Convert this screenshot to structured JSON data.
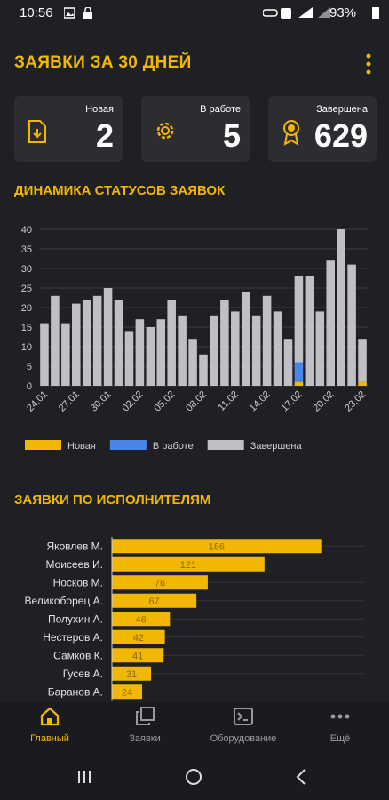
{
  "status_bar": {
    "time": "10:56",
    "battery": "93%"
  },
  "header": {
    "title": "ЗАЯВКИ ЗА 30 ДНЕЙ"
  },
  "cards": [
    {
      "label": "Новая",
      "value": 2
    },
    {
      "label": "В работе",
      "value": 5
    },
    {
      "label": "Завершена",
      "value": 629
    }
  ],
  "chart_data": [
    {
      "type": "bar",
      "stacked": true,
      "title": "ДИНАМИКА СТАТУСОВ ЗАЯВОК",
      "categories": [
        "24.01",
        null,
        null,
        "27.01",
        null,
        null,
        "30.01",
        null,
        null,
        "02.02",
        null,
        null,
        "05.02",
        null,
        null,
        "08.02",
        null,
        null,
        "11.02",
        null,
        null,
        "14.02",
        null,
        null,
        "17.02",
        null,
        null,
        "20.02",
        null,
        null,
        "23.02"
      ],
      "series": [
        {
          "name": "Новая",
          "color": "#f2b705",
          "values": [
            0,
            0,
            0,
            0,
            0,
            0,
            0,
            0,
            0,
            0,
            0,
            0,
            0,
            0,
            0,
            0,
            0,
            0,
            0,
            0,
            0,
            0,
            0,
            0,
            1,
            0,
            0,
            0,
            0,
            0,
            1
          ]
        },
        {
          "name": "В работе",
          "color": "#4a86e8",
          "values": [
            0,
            0,
            0,
            0,
            0,
            0,
            0,
            0,
            0,
            0,
            0,
            0,
            0,
            0,
            0,
            0,
            0,
            0,
            0,
            0,
            0,
            0,
            0,
            0,
            5,
            0,
            0,
            0,
            0,
            0,
            0
          ]
        },
        {
          "name": "Завершена",
          "color": "#bfc0c4",
          "values": [
            16,
            23,
            16,
            21,
            22,
            23,
            25,
            22,
            14,
            17,
            15,
            17,
            22,
            18,
            12,
            8,
            18,
            22,
            19,
            24,
            18,
            23,
            19,
            12,
            22,
            28,
            19,
            32,
            40,
            31,
            11
          ]
        }
      ],
      "ylim": [
        0,
        40
      ],
      "yticks": [
        0,
        5,
        10,
        15,
        20,
        25,
        30,
        35,
        40
      ],
      "grid": true,
      "legend": "bottom"
    },
    {
      "type": "barh",
      "title": "ЗАЯВКИ ПО ИСПОЛНИТЕЛЯМ",
      "categories": [
        "Яковлев М.",
        "Моисеев И.",
        "Носков М.",
        "Великоборец А.",
        "Полухин А.",
        "Нестеров А.",
        "Самков К.",
        "Гусев А.",
        "Баранов А."
      ],
      "values": [
        166,
        121,
        76,
        67,
        46,
        42,
        41,
        31,
        24
      ],
      "color": "#f2b705",
      "xlim": [
        0,
        200
      ],
      "grid": true
    }
  ],
  "nav": [
    {
      "label": "Главный"
    },
    {
      "label": "Заявки"
    },
    {
      "label": "Оборудование"
    },
    {
      "label": "Ещё"
    }
  ]
}
